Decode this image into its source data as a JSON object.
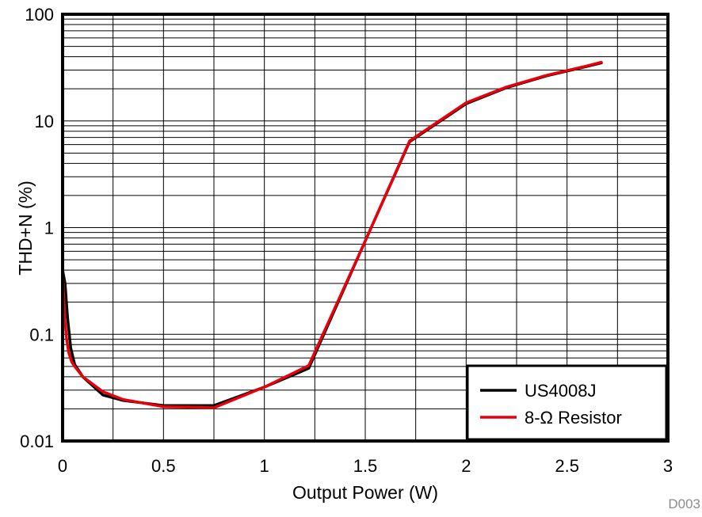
{
  "chart_data": {
    "type": "line",
    "title": "",
    "xlabel": "Output Power (W)",
    "ylabel": "THD+N (%)",
    "xlim": [
      0,
      3
    ],
    "ylim": [
      0.01,
      100
    ],
    "y_scale": "log",
    "x_ticks": [
      "0",
      "0.5",
      "1",
      "1.5",
      "2",
      "2.5",
      "3"
    ],
    "y_ticks": [
      "0.01",
      "0.1",
      "1",
      "10",
      "100"
    ],
    "grid": true,
    "legend_position": "bottom-right",
    "figure_id": "D003",
    "series": [
      {
        "name": "US4008J",
        "color": "#000000",
        "x": [
          0.0,
          0.012,
          0.025,
          0.04,
          0.06,
          0.1,
          0.2,
          0.3,
          0.5,
          0.75,
          1.0,
          1.22,
          1.5,
          1.72,
          2.0,
          2.2,
          2.4,
          2.6,
          2.67
        ],
        "y": [
          0.4,
          0.3,
          0.14,
          0.075,
          0.052,
          0.04,
          0.027,
          0.024,
          0.0215,
          0.0215,
          0.032,
          0.048,
          0.75,
          6.4,
          14.5,
          20.5,
          26.5,
          32.5,
          35
        ]
      },
      {
        "name": "8-Ω Resistor",
        "color": "#e8000b",
        "x": [
          0.0,
          0.006,
          0.012,
          0.02,
          0.03,
          0.045,
          0.06,
          0.1,
          0.2,
          0.3,
          0.5,
          0.75,
          1.0,
          1.22,
          1.5,
          1.72,
          2.0,
          2.2,
          2.4,
          2.6,
          2.67
        ],
        "y": [
          0.4,
          0.22,
          0.13,
          0.09,
          0.068,
          0.055,
          0.05,
          0.04,
          0.029,
          0.0245,
          0.021,
          0.0205,
          0.032,
          0.051,
          0.75,
          6.5,
          14.8,
          20.8,
          26.8,
          32.8,
          35.5
        ]
      }
    ]
  }
}
